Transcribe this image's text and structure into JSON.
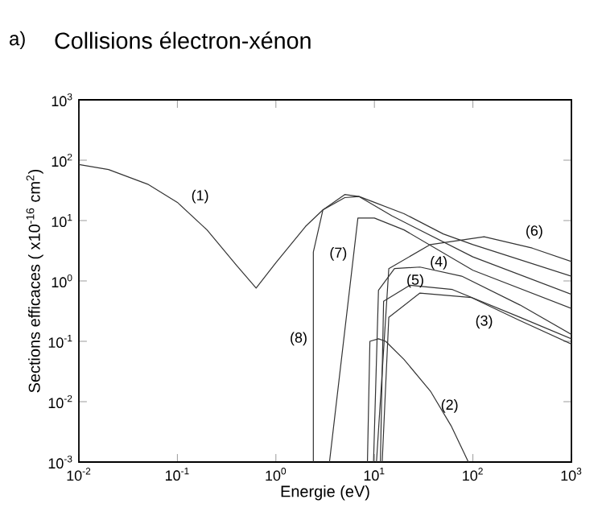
{
  "chart_data": {
    "type": "line",
    "title": "Collisions électron-xénon",
    "xlabel": "Energie (eV)",
    "ylabel": "Sections efficaces ( x10$^{-16}$ cm$^{2}$)",
    "annotations": [
      "a)"
    ],
    "log": "xy",
    "legend": false,
    "grid": false,
    "marker": "none",
    "line_style": "solid",
    "xlim": [
      0.01,
      1000
    ],
    "ylim": [
      0.001,
      1000
    ],
    "xticks": [
      {
        "value": 0.01,
        "label": "10$^{-2}$"
      },
      {
        "value": 0.1,
        "label": "10$^{-1}$"
      },
      {
        "value": 1,
        "label": "10$^{0}$"
      },
      {
        "value": 10,
        "label": "10$^{1}$"
      },
      {
        "value": 100,
        "label": "10$^{2}$"
      },
      {
        "value": 1000,
        "label": "10$^{3}$"
      }
    ],
    "yticks": [
      {
        "value": 0.001,
        "label": "10$^{-3}$"
      },
      {
        "value": 0.01,
        "label": "10$^{-2}$"
      },
      {
        "value": 0.1,
        "label": "10$^{-1}$"
      },
      {
        "value": 1,
        "label": "10$^{0}$"
      },
      {
        "value": 10,
        "label": "10$^{1}$"
      },
      {
        "value": 100,
        "label": "10$^{2}$"
      },
      {
        "value": 1000,
        "label": "10$^{3}$"
      }
    ],
    "series": [
      {
        "name": "(1)",
        "color": "#333333",
        "x": [
          0.01,
          0.02,
          0.05,
          0.1,
          0.2,
          0.4,
          0.63,
          1,
          2,
          3,
          5,
          7,
          10,
          20,
          50,
          100,
          1000
        ],
        "values": [
          85,
          70,
          40,
          20,
          7,
          1.8,
          0.76,
          2,
          8,
          15,
          24,
          25,
          20,
          13,
          6,
          4,
          1.2
        ]
      },
      {
        "name": "(2)",
        "color": "#333333",
        "x": [
          8.5,
          9,
          11,
          13,
          20,
          37,
          60,
          90
        ],
        "values": [
          0.001,
          0.1,
          0.11,
          0.1,
          0.05,
          0.015,
          0.004,
          0.001
        ]
      },
      {
        "name": "(3)",
        "color": "#333333",
        "x": [
          12,
          14,
          29,
          97,
          300,
          1000
        ],
        "values": [
          0.001,
          0.25,
          0.63,
          0.53,
          0.22,
          0.09
        ]
      },
      {
        "name": "(4)",
        "color": "#333333",
        "x": [
          9.8,
          11,
          16,
          29,
          77,
          300,
          1000
        ],
        "values": [
          0.001,
          0.7,
          1.6,
          1.7,
          1.2,
          0.4,
          0.13
        ]
      },
      {
        "name": "(5)",
        "color": "#333333",
        "x": [
          11.5,
          12.4,
          23,
          62,
          300,
          1000
        ],
        "values": [
          0.001,
          0.46,
          0.85,
          0.72,
          0.25,
          0.11
        ]
      },
      {
        "name": "(6)",
        "color": "#333333",
        "x": [
          10.5,
          14,
          37,
          130,
          400,
          1000
        ],
        "values": [
          0.001,
          1.6,
          4,
          5.4,
          3.5,
          2.1
        ]
      },
      {
        "name": "(7)",
        "color": "#333333",
        "x": [
          3.5,
          6.8,
          10,
          20,
          100,
          1000
        ],
        "values": [
          0.001,
          11,
          11,
          7,
          1.5,
          0.35
        ]
      },
      {
        "name": "(8)",
        "color": "#333333",
        "x": [
          2.4,
          2.4,
          3,
          5,
          7,
          15,
          100,
          1000
        ],
        "values": [
          0.001,
          3,
          15,
          27,
          25,
          12,
          2.5,
          0.6
        ]
      }
    ]
  }
}
